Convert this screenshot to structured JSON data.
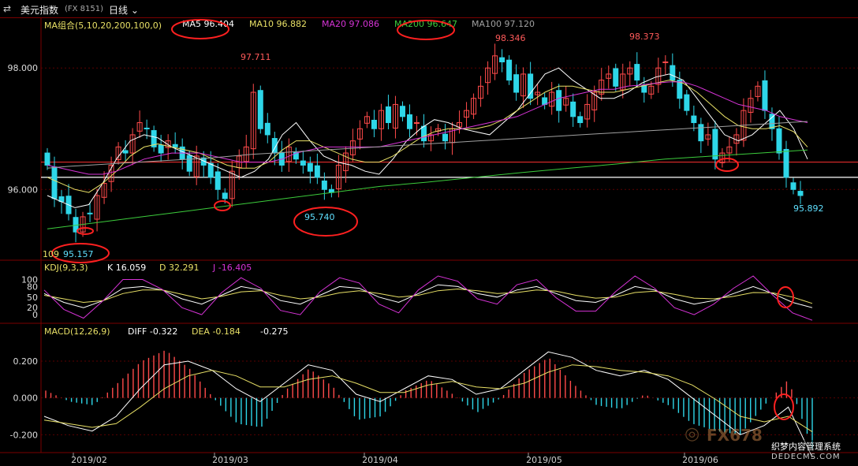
{
  "header": {
    "back_icon": "double-arrow-icon",
    "symbol": "美元指数",
    "code": "(FX 8151)",
    "period": "日线",
    "period_caret": "chevron-down-icon"
  },
  "ma_legend": {
    "group": "MA组合(5,10,20,200,100,0)",
    "ma5": "MA5 96.404",
    "ma10": "MA10 96.882",
    "ma20": "MA20 97.086",
    "ma200": "MA200 96.647",
    "ma100": "MA100 97.120",
    "colors": {
      "ma5": "#ffffff",
      "ma10": "#e8e066",
      "ma20": "#d633d6",
      "ma200": "#3ccc3c",
      "ma100": "#a0a0a0"
    }
  },
  "kdj_legend": {
    "name": "KDJ(9,3,3)",
    "k": "K 16.059",
    "d": "D 32.291",
    "j": "J -16.405"
  },
  "macd_legend": {
    "name": "MACD(12,26,9)",
    "diff": "DIFF -0.322",
    "dea": "DEA -0.184",
    "macd": "-0.275"
  },
  "annotations": {
    "hi1": "97.711",
    "hi2": "98.346",
    "hi3": "98.373",
    "lo1": "95.740",
    "lo2": "95.892",
    "lo3": "95.157",
    "lo3_prefix": "109"
  },
  "watermark": {
    "brand": "FX678",
    "sub1": "织梦内容管理系统",
    "sub2": "DEDECMS.COM"
  },
  "chart_data": [
    {
      "type": "candlestick",
      "title": "美元指数 日线",
      "y_ticks": [
        "98.000",
        "96.000"
      ],
      "ylim": [
        94.9,
        98.6
      ],
      "x_ticks": [
        "2019/02",
        "2019/03",
        "2019/04",
        "2019/05",
        "2019/06"
      ],
      "horizontal_lines": [
        96.45,
        96.2
      ],
      "closes": [
        96.4,
        95.85,
        95.8,
        95.6,
        95.3,
        95.55,
        95.6,
        95.9,
        96.1,
        96.4,
        96.7,
        96.6,
        96.9,
        97.1,
        97.0,
        96.7,
        96.6,
        96.8,
        96.7,
        96.5,
        96.3,
        96.55,
        96.4,
        96.2,
        96.0,
        95.85,
        96.3,
        96.55,
        96.7,
        97.6,
        97.0,
        96.9,
        96.6,
        96.4,
        96.7,
        96.5,
        96.4,
        96.3,
        96.2,
        96.0,
        95.95,
        96.4,
        96.6,
        96.8,
        97.0,
        97.2,
        97.0,
        97.3,
        97.1,
        97.4,
        97.2,
        97.0,
        97.1,
        96.8,
        96.9,
        97.0,
        96.8,
        97.0,
        97.1,
        97.3,
        97.5,
        97.7,
        98.0,
        98.2,
        98.1,
        97.8,
        97.6,
        97.9,
        97.5,
        97.6,
        97.4,
        97.6,
        97.3,
        97.5,
        97.2,
        97.1,
        97.4,
        97.6,
        97.8,
        97.9,
        97.7,
        97.9,
        98.0,
        97.8,
        97.6,
        97.7,
        98.0,
        98.1,
        97.8,
        97.5,
        97.3,
        97.1,
        96.8,
        96.9,
        96.5,
        96.6,
        96.7,
        96.9,
        97.3,
        97.5,
        97.7,
        97.3,
        97.0,
        96.6,
        96.2,
        96.0,
        95.9
      ],
      "ma_lines": [
        {
          "name": "MA5",
          "color": "#ffffff",
          "values": [
            95.9,
            95.8,
            95.7,
            95.75,
            96.1,
            96.5,
            96.8,
            96.9,
            96.85,
            96.7,
            96.6,
            96.5,
            96.4,
            96.3,
            96.2,
            96.3,
            96.5,
            96.9,
            97.1,
            96.8,
            96.55,
            96.45,
            96.4,
            96.3,
            96.25,
            96.5,
            96.8,
            97.0,
            97.15,
            97.1,
            97.0,
            96.95,
            96.9,
            97.1,
            97.3,
            97.6,
            97.9,
            98.0,
            97.8,
            97.65,
            97.5,
            97.5,
            97.6,
            97.75,
            97.85,
            97.9,
            97.8,
            97.5,
            97.2,
            96.9,
            96.8,
            96.9,
            97.1,
            97.3,
            97.0,
            96.5
          ]
        },
        {
          "name": "MA10",
          "color": "#e8e066",
          "values": [
            96.2,
            96.1,
            96.0,
            95.95,
            96.1,
            96.3,
            96.55,
            96.7,
            96.75,
            96.7,
            96.65,
            96.6,
            96.5,
            96.4,
            96.35,
            96.35,
            96.45,
            96.65,
            96.8,
            96.8,
            96.7,
            96.6,
            96.5,
            96.45,
            96.45,
            96.55,
            96.7,
            96.85,
            96.95,
            97.0,
            97.0,
            97.0,
            97.05,
            97.15,
            97.3,
            97.45,
            97.6,
            97.7,
            97.7,
            97.65,
            97.6,
            97.6,
            97.65,
            97.7,
            97.75,
            97.8,
            97.75,
            97.6,
            97.4,
            97.2,
            97.05,
            97.0,
            97.0,
            97.05,
            96.95,
            96.7
          ]
        },
        {
          "name": "MA20",
          "color": "#d633d6",
          "values": [
            96.4,
            96.35,
            96.3,
            96.25,
            96.25,
            96.3,
            96.4,
            96.5,
            96.55,
            96.6,
            96.6,
            96.6,
            96.55,
            96.5,
            96.45,
            96.45,
            96.45,
            96.5,
            96.6,
            96.65,
            96.7,
            96.7,
            96.7,
            96.7,
            96.7,
            96.75,
            96.8,
            96.85,
            96.9,
            96.95,
            97.0,
            97.05,
            97.1,
            97.15,
            97.2,
            97.3,
            97.4,
            97.5,
            97.55,
            97.6,
            97.65,
            97.65,
            97.7,
            97.72,
            97.75,
            97.77,
            97.77,
            97.7,
            97.6,
            97.5,
            97.4,
            97.35,
            97.3,
            97.2,
            97.15,
            97.1
          ]
        },
        {
          "name": "MA100",
          "color": "#a0a0a0",
          "values": [
            96.35,
            96.38,
            96.4,
            96.42,
            96.44,
            96.46,
            96.48,
            96.5,
            96.52,
            96.55,
            96.58,
            96.6,
            96.62,
            96.64,
            96.66,
            96.68,
            96.7,
            96.72,
            96.74,
            96.76,
            96.78,
            96.8,
            96.82,
            96.84,
            96.86,
            96.88,
            96.9,
            96.92,
            96.94,
            96.96,
            96.98,
            97.0,
            97.02,
            97.04,
            97.06,
            97.08,
            97.1,
            97.12
          ]
        },
        {
          "name": "MA200",
          "color": "#3ccc3c",
          "values": [
            95.35,
            95.45,
            95.55,
            95.65,
            95.75,
            95.85,
            95.95,
            96.05,
            96.12,
            96.2,
            96.28,
            96.35,
            96.42,
            96.5,
            96.55,
            96.6,
            96.65
          ]
        }
      ]
    },
    {
      "type": "line",
      "title": "KDJ(9,3,3)",
      "y_ticks": [
        "100",
        "80",
        "50",
        "20",
        "0"
      ],
      "ylim": [
        -20,
        110
      ],
      "series": [
        {
          "name": "K",
          "color": "#ffffff",
          "values": [
            60,
            35,
            20,
            40,
            75,
            80,
            70,
            45,
            30,
            55,
            80,
            70,
            40,
            30,
            55,
            80,
            75,
            50,
            35,
            60,
            85,
            80,
            60,
            50,
            70,
            80,
            60,
            40,
            35,
            55,
            80,
            70,
            45,
            30,
            40,
            60,
            80,
            60,
            35,
            20
          ]
        },
        {
          "name": "D",
          "color": "#e8e066",
          "values": [
            55,
            45,
            35,
            40,
            60,
            70,
            70,
            58,
            45,
            52,
            65,
            68,
            55,
            45,
            50,
            62,
            68,
            60,
            50,
            55,
            68,
            73,
            68,
            60,
            63,
            70,
            67,
            55,
            47,
            50,
            63,
            67,
            58,
            47,
            45,
            52,
            63,
            62,
            50,
            32
          ]
        },
        {
          "name": "J",
          "color": "#d633d6",
          "values": [
            70,
            15,
            -10,
            40,
            100,
            100,
            72,
            20,
            0,
            62,
            105,
            75,
            12,
            0,
            65,
            105,
            90,
            30,
            5,
            70,
            110,
            95,
            45,
            30,
            85,
            100,
            48,
            10,
            10,
            65,
            110,
            75,
            20,
            0,
            30,
            75,
            110,
            55,
            5,
            -16
          ]
        }
      ]
    },
    {
      "type": "bar",
      "title": "MACD(12,26,9)",
      "y_ticks": [
        "0.200",
        "0.000",
        "-0.200"
      ],
      "ylim": [
        -0.28,
        0.32
      ],
      "series": [
        {
          "name": "DIFF",
          "color": "#ffffff",
          "values": [
            -0.1,
            -0.15,
            -0.18,
            -0.1,
            0.05,
            0.18,
            0.2,
            0.15,
            0.05,
            -0.02,
            0.08,
            0.18,
            0.15,
            0.02,
            -0.02,
            0.05,
            0.12,
            0.1,
            0.02,
            0.05,
            0.15,
            0.25,
            0.22,
            0.15,
            0.12,
            0.15,
            0.1,
            0.0,
            -0.1,
            -0.2,
            -0.15,
            -0.05,
            -0.322
          ]
        },
        {
          "name": "DEA",
          "color": "#e8e066",
          "values": [
            -0.12,
            -0.14,
            -0.16,
            -0.14,
            -0.05,
            0.05,
            0.12,
            0.15,
            0.12,
            0.06,
            0.06,
            0.1,
            0.12,
            0.08,
            0.03,
            0.03,
            0.07,
            0.09,
            0.06,
            0.05,
            0.08,
            0.14,
            0.18,
            0.17,
            0.15,
            0.14,
            0.12,
            0.07,
            -0.01,
            -0.1,
            -0.13,
            -0.1,
            -0.184
          ]
        },
        {
          "name": "MACD",
          "values": [
            0.04,
            -0.02,
            -0.04,
            0.08,
            0.2,
            0.26,
            0.16,
            0.0,
            -0.14,
            -0.16,
            0.04,
            0.16,
            0.06,
            -0.12,
            -0.1,
            0.04,
            0.1,
            0.02,
            -0.08,
            0.0,
            0.14,
            0.22,
            0.08,
            -0.04,
            -0.06,
            0.02,
            -0.04,
            -0.14,
            -0.18,
            -0.2,
            -0.04,
            0.1,
            -0.275
          ]
        }
      ]
    }
  ]
}
